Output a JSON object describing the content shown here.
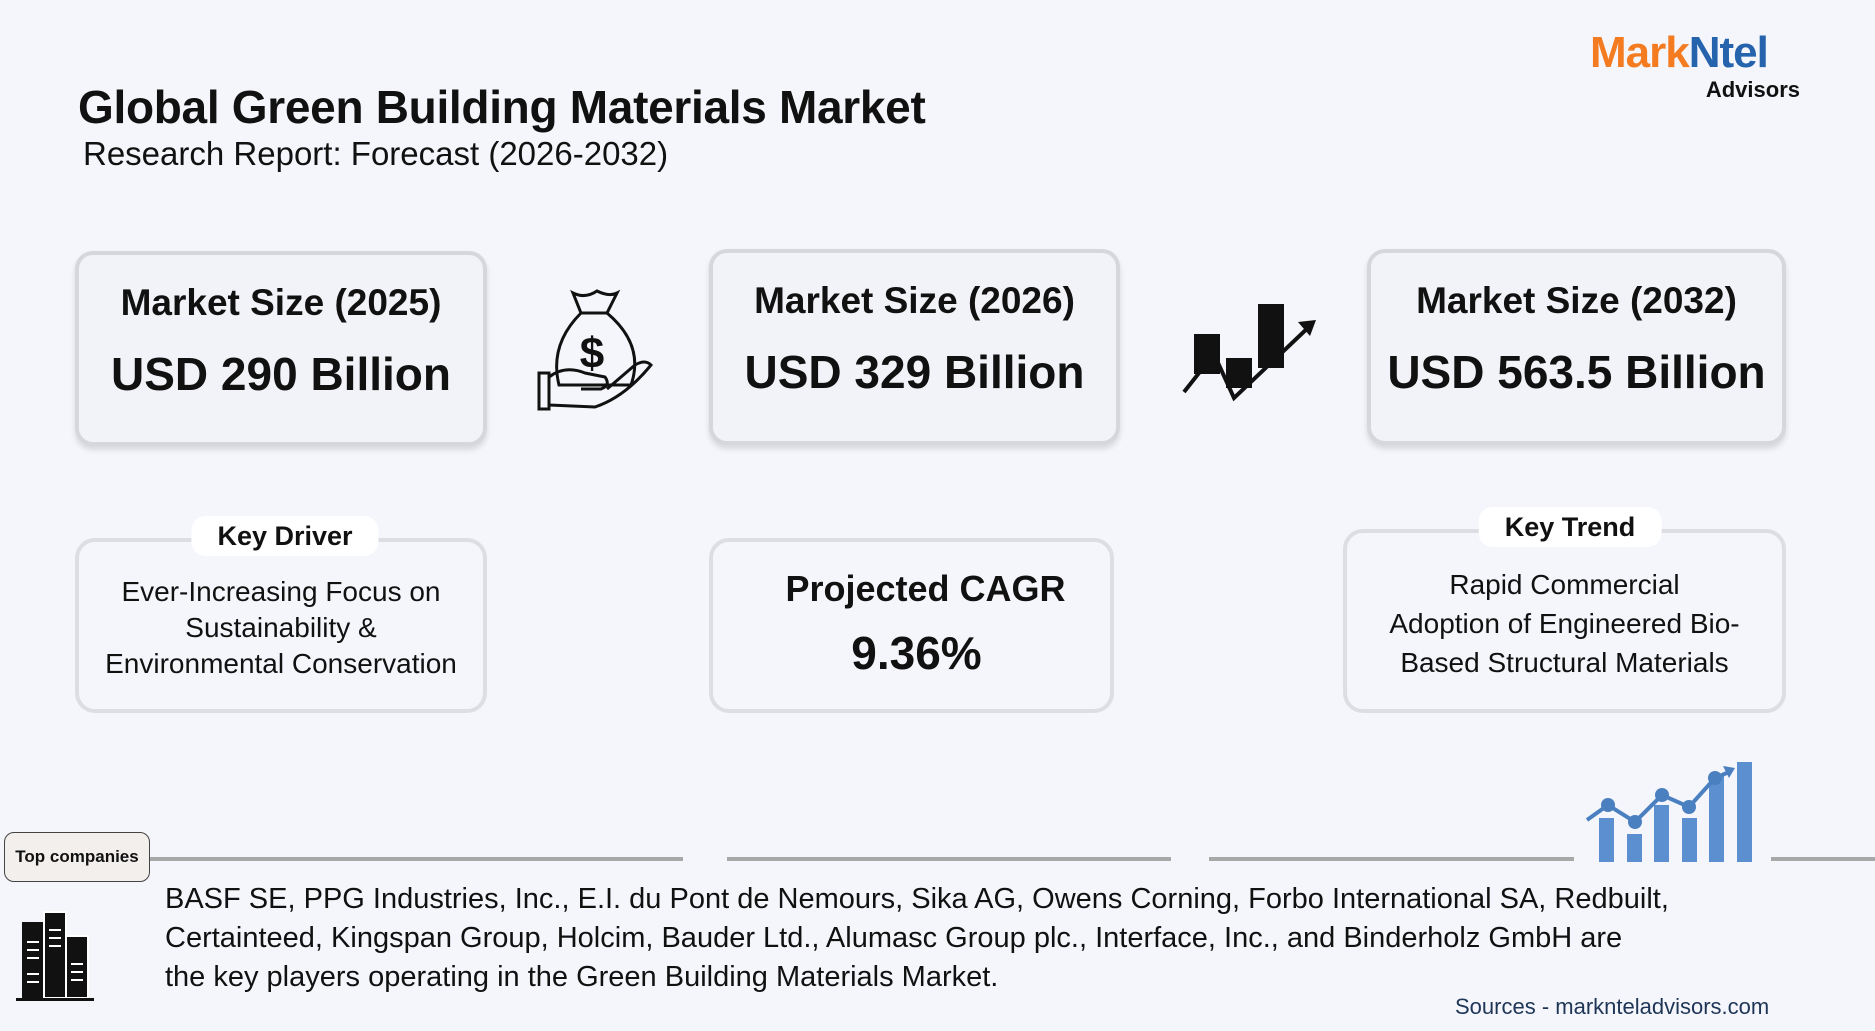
{
  "header": {
    "title": "Global Green Building Materials Market",
    "subtitle": "Research Report: Forecast (2026-2032)"
  },
  "logo": {
    "brand_part1": "Mark",
    "brand_part2": "Ntel",
    "sub": "Advisors",
    "colors": {
      "orange": "#f47b20",
      "blue": "#2563ad"
    }
  },
  "market_sizes": [
    {
      "label": "Market Size (2025)",
      "value": "USD 290 Billion"
    },
    {
      "label": "Market Size (2026)",
      "value": "USD 329 Billion"
    },
    {
      "label": "Market Size (2032)",
      "value": "USD 563.5 Billion"
    }
  ],
  "icons": [
    "money-bag-hand-icon",
    "growth-chart-icon",
    "buildings-icon",
    "bar-line-chart-icon"
  ],
  "key_driver": {
    "tag": "Key Driver",
    "lines": [
      "Ever-Increasing Focus on",
      "Sustainability &",
      "Environmental Conservation"
    ]
  },
  "cagr": {
    "label": "Projected CAGR",
    "value": "9.36%"
  },
  "key_trend": {
    "tag": "Key Trend",
    "lines": [
      "Rapid Commercial",
      "Adoption of Engineered Bio-",
      "Based Structural Materials"
    ]
  },
  "companies": {
    "tag": "Top companies",
    "lines": [
      "BASF SE, PPG Industries, Inc., E.I. du Pont de Nemours, Sika AG, Owens Corning, Forbo International SA, Redbuilt,",
      "Certainteed, Kingspan Group, Holcim, Bauder Ltd., Alumasc Group plc., Interface, Inc., and Binderholz GmbH are",
      "the key players operating in the Green Building Materials Market."
    ]
  },
  "sources": "Sources - marknteladvisors.com"
}
